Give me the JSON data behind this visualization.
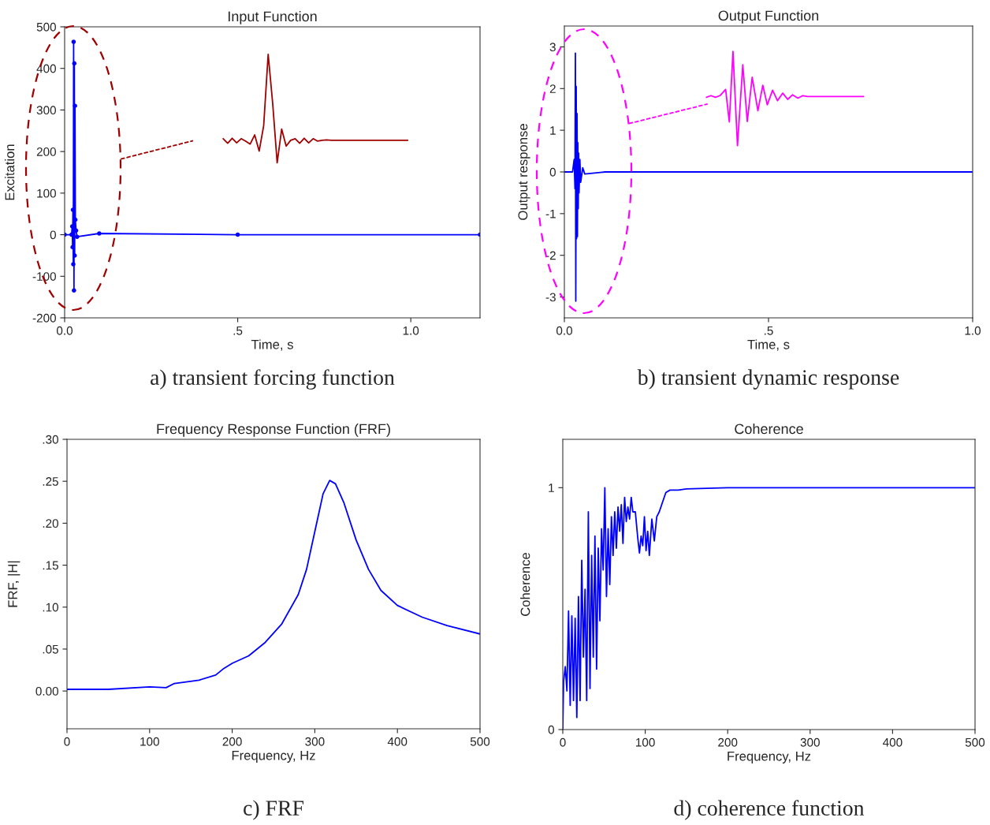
{
  "chart_data": [
    {
      "type": "line",
      "title": "Input Function",
      "xlabel": "Time, s",
      "ylabel": "Excitation",
      "annotations": [
        "a) transient forcing function"
      ],
      "xlim": [
        0,
        1.2
      ],
      "ylim": [
        -200,
        500
      ],
      "xticks": [
        {
          "value": 0,
          "label": "0.0"
        },
        {
          "value": 0.5,
          "label": ".5"
        },
        {
          "value": 1,
          "label": "1.0"
        }
      ],
      "yticks": [
        -200,
        -100,
        0,
        100,
        200,
        300,
        400,
        500
      ],
      "grid": false,
      "legend": false,
      "marker": "circle",
      "line_style": "solid",
      "series": [
        {
          "color": "#0000ff",
          "x": [
            0,
            0.02,
            0.022,
            0.023,
            0.024,
            0.025,
            0.026,
            0.027,
            0.028,
            0.029,
            0.03,
            0.031,
            0.033,
            0.036,
            0.1,
            0.5,
            1.2
          ],
          "values": [
            0,
            0,
            20,
            -30,
            60,
            -71,
            464,
            -134,
            412,
            -50,
            310,
            36,
            10,
            -5,
            3,
            0,
            0
          ]
        },
        {
          "color": "#a00000",
          "marker": "none",
          "line_style": "dashed",
          "x": [
            0.162,
            0.371
          ],
          "values": [
            182,
            226
          ]
        },
        {
          "color": "#a00000",
          "marker": "none",
          "x": [
            0.458,
            0.471,
            0.484,
            0.497,
            0.51,
            0.523,
            0.536,
            0.549,
            0.562,
            0.575,
            0.588,
            0.601,
            0.614,
            0.627,
            0.64,
            0.653,
            0.666,
            0.679,
            0.692,
            0.705,
            0.718,
            0.731,
            0.744,
            0.757,
            0.77,
            0.783,
            0.796,
            0.809,
            0.822,
            0.835,
            0.848,
            0.861,
            0.874,
            0.887,
            0.9,
            0.913,
            0.926,
            0.939,
            0.952,
            0.965,
            0.978,
            0.991
          ],
          "values": [
            231,
            220,
            232,
            221,
            231,
            225,
            218,
            240,
            201,
            262,
            434,
            316,
            173,
            254,
            213,
            227,
            231,
            220,
            232,
            221,
            231,
            225,
            227,
            228,
            227,
            227,
            227,
            227,
            227,
            227,
            227,
            227,
            227,
            227,
            227,
            227,
            227,
            227,
            227,
            227,
            227,
            227
          ]
        }
      ]
    },
    {
      "type": "line",
      "title": "Output Function",
      "xlabel": "Time, s",
      "ylabel": "Output response",
      "annotations": [
        "b) transient dynamic response"
      ],
      "xlim": [
        0,
        1
      ],
      "ylim": [
        -3.5,
        3.5
      ],
      "xticks": [
        {
          "value": 0,
          "label": "0.0"
        },
        {
          "value": 0.5,
          "label": ".5"
        },
        {
          "value": 1,
          "label": "1.0"
        }
      ],
      "yticks": [
        -3,
        -2,
        -1,
        0,
        1,
        2,
        3
      ],
      "grid": false,
      "legend": false,
      "marker": "none",
      "line_style": "solid",
      "series": [
        {
          "color": "#0000ff",
          "x": [
            0,
            0.02,
            0.024,
            0.026,
            0.027,
            0.028,
            0.029,
            0.03,
            0.031,
            0.032,
            0.033,
            0.034,
            0.035,
            0.036,
            0.038,
            0.04,
            0.045,
            0.05,
            0.1,
            0.5,
            1.0
          ],
          "values": [
            0,
            0,
            0.3,
            -0.4,
            2.85,
            -3.1,
            2.05,
            -1.6,
            1.4,
            -1.55,
            0.7,
            -0.88,
            0.45,
            -0.5,
            0.3,
            -0.25,
            0.1,
            -0.05,
            0,
            0,
            0
          ]
        },
        {
          "color": "#ff00ff",
          "line_style": "dashed",
          "x": [
            0.158,
            0.351
          ],
          "values": [
            1.16,
            1.63
          ]
        },
        {
          "color": "#ff00ff",
          "x": [
            0.348,
            0.359,
            0.37,
            0.381,
            0.395,
            0.404,
            0.413,
            0.424,
            0.437,
            0.448,
            0.46,
            0.474,
            0.486,
            0.497,
            0.51,
            0.522,
            0.535,
            0.547,
            0.559,
            0.572,
            0.584,
            0.596,
            0.609,
            0.621,
            0.634,
            0.646,
            0.658,
            0.671,
            0.683,
            0.696,
            0.708,
            0.72,
            0.733
          ],
          "values": [
            1.79,
            1.83,
            1.79,
            1.83,
            1.98,
            1.2,
            2.89,
            0.63,
            2.57,
            1.21,
            2.27,
            1.47,
            2.08,
            1.61,
            1.96,
            1.71,
            1.89,
            1.74,
            1.85,
            1.77,
            1.83,
            1.81,
            1.81,
            1.81,
            1.81,
            1.81,
            1.81,
            1.81,
            1.81,
            1.81,
            1.81,
            1.81,
            1.81
          ]
        }
      ]
    },
    {
      "type": "line",
      "title": "Frequency Response Function (FRF)",
      "xlabel": "Frequency, Hz",
      "ylabel": "FRF, |H|",
      "annotations": [
        "c) FRF"
      ],
      "xlim": [
        0,
        500
      ],
      "ylim": [
        -0.045,
        0.3
      ],
      "xticks": [
        0,
        100,
        200,
        300,
        400,
        500
      ],
      "yticks": [
        {
          "value": 0,
          "label": "0.00"
        },
        {
          "value": 0.05,
          "label": ".05"
        },
        {
          "value": 0.1,
          "label": ".10"
        },
        {
          "value": 0.15,
          "label": ".15"
        },
        {
          "value": 0.2,
          "label": ".20"
        },
        {
          "value": 0.25,
          "label": ".25"
        },
        {
          "value": 0.3,
          "label": ".30"
        }
      ],
      "grid": false,
      "legend": false,
      "marker": "none",
      "line_style": "solid",
      "series": [
        {
          "color": "#0000ff",
          "x": [
            0,
            50,
            100,
            120,
            130,
            160,
            180,
            190,
            200,
            220,
            240,
            260,
            280,
            290,
            300,
            310,
            318,
            325,
            335,
            350,
            365,
            380,
            400,
            430,
            460,
            500
          ],
          "values": [
            0.002,
            0.002,
            0.005,
            0.004,
            0.009,
            0.013,
            0.019,
            0.027,
            0.033,
            0.042,
            0.058,
            0.08,
            0.115,
            0.145,
            0.19,
            0.235,
            0.251,
            0.247,
            0.225,
            0.18,
            0.145,
            0.12,
            0.102,
            0.088,
            0.078,
            0.068
          ]
        }
      ]
    },
    {
      "type": "line",
      "title": "Coherence",
      "xlabel": "Frequency, Hz",
      "ylabel": "Coherence",
      "annotations": [
        "d) coherence function"
      ],
      "xlim": [
        0,
        500
      ],
      "ylim": [
        0,
        1.2
      ],
      "xticks": [
        0,
        100,
        200,
        300,
        400,
        500
      ],
      "yticks": [
        0,
        1
      ],
      "grid": false,
      "legend": false,
      "marker": "none",
      "line_style": "solid",
      "series": [
        {
          "color": "#0000ff",
          "x": [
            0,
            1,
            3,
            5,
            7,
            9,
            11,
            13,
            15,
            17,
            19,
            21,
            23,
            25,
            27,
            29,
            31,
            33,
            35,
            37,
            39,
            41,
            43,
            45,
            47,
            49,
            51,
            53,
            55,
            57,
            59,
            61,
            63,
            65,
            67,
            69,
            71,
            73,
            75,
            77,
            79,
            81,
            83,
            85,
            88,
            91,
            93,
            95,
            97,
            99,
            101,
            103,
            105,
            108,
            111,
            114,
            117,
            120,
            125,
            130,
            140,
            150,
            200,
            300,
            500
          ],
          "values": [
            0,
            0.2,
            0.26,
            0.16,
            0.49,
            0.1,
            0.47,
            0.12,
            0.46,
            0.05,
            0.55,
            0.12,
            0.7,
            0.3,
            0.58,
            0.12,
            0.9,
            0.17,
            0.72,
            0.3,
            0.8,
            0.25,
            0.75,
            0.45,
            0.83,
            0.66,
            1.0,
            0.55,
            0.83,
            0.6,
            0.88,
            0.72,
            0.9,
            0.75,
            0.92,
            0.82,
            0.93,
            0.77,
            0.96,
            0.86,
            0.92,
            0.87,
            0.96,
            0.9,
            0.9,
            0.79,
            0.73,
            0.8,
            0.76,
            0.88,
            0.74,
            0.82,
            0.72,
            0.87,
            0.78,
            0.88,
            0.9,
            0.93,
            0.98,
            0.99,
            0.99,
            0.995,
            1.0,
            1.0,
            1.0
          ]
        }
      ]
    }
  ]
}
